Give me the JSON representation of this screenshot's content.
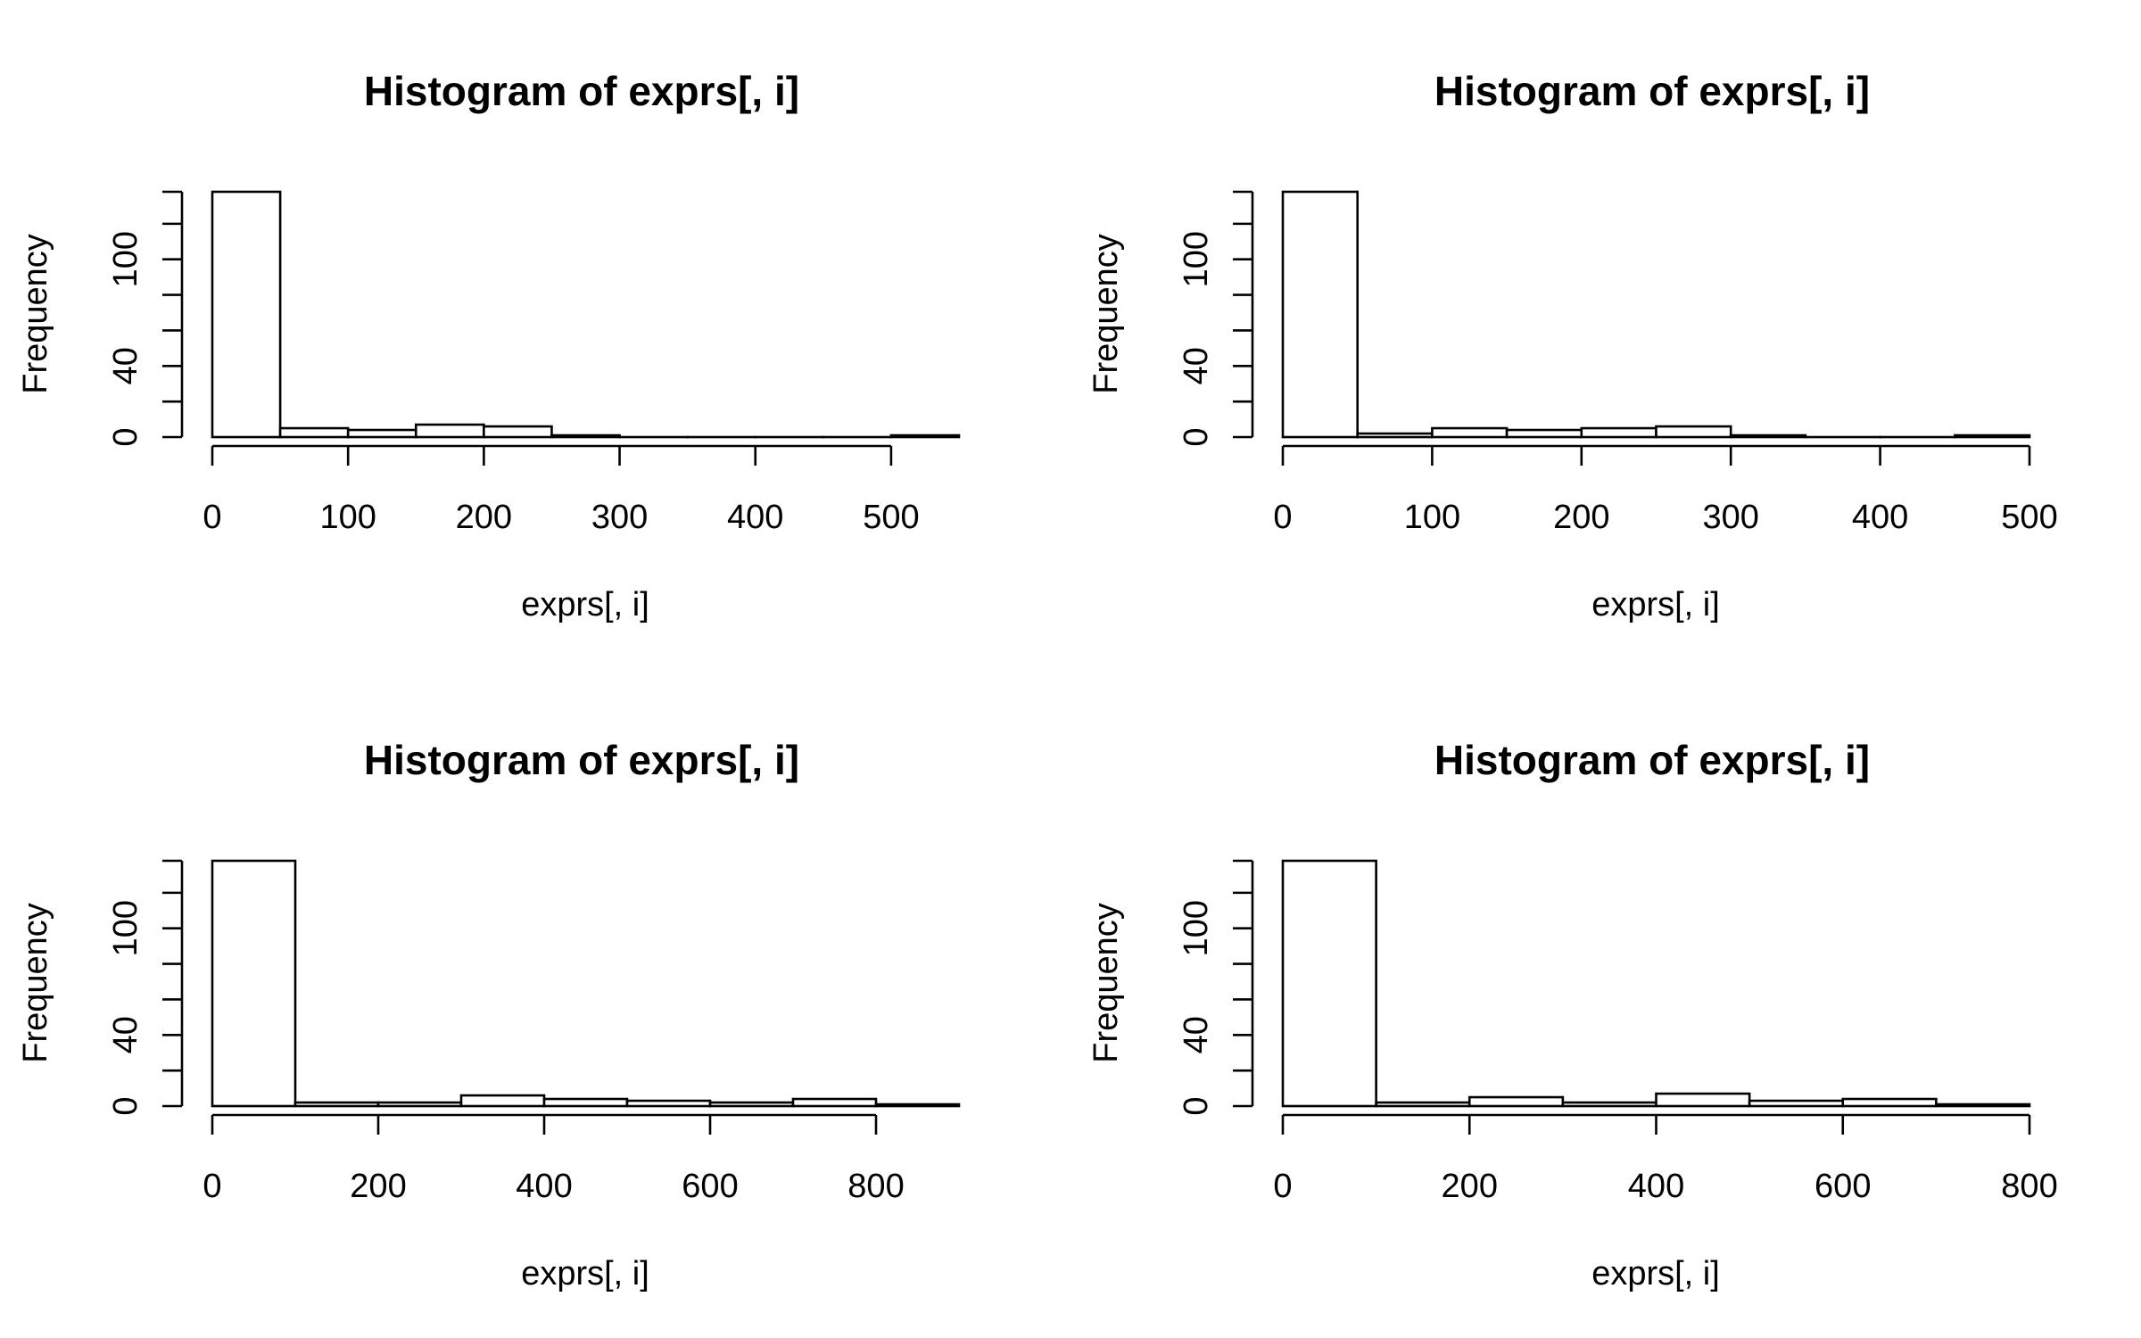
{
  "chart_data": [
    {
      "type": "bar",
      "title": "Histogram of exprs[, i]",
      "xlabel": "exprs[, i]",
      "ylabel": "Frequency",
      "bin_width": 50,
      "bins_start": 0,
      "values": [
        138,
        5,
        4,
        7,
        6,
        1,
        0,
        0,
        0,
        0,
        1
      ],
      "xlim": [
        0,
        550
      ],
      "ylim": [
        0,
        138
      ],
      "x_ticks": [
        0,
        100,
        200,
        300,
        400,
        500
      ],
      "y_ticks": [
        0,
        40,
        100
      ],
      "y_minor_ticks": [
        20,
        60,
        80,
        120,
        138
      ],
      "grid": false
    },
    {
      "type": "bar",
      "title": "Histogram of exprs[, i]",
      "xlabel": "exprs[, i]",
      "ylabel": "Frequency",
      "bin_width": 50,
      "bins_start": 0,
      "values": [
        138,
        2,
        5,
        4,
        5,
        6,
        1,
        0,
        0,
        1
      ],
      "xlim": [
        0,
        500
      ],
      "ylim": [
        0,
        138
      ],
      "x_ticks": [
        0,
        100,
        200,
        300,
        400,
        500
      ],
      "y_ticks": [
        0,
        40,
        100
      ],
      "y_minor_ticks": [
        20,
        60,
        80,
        120,
        138
      ],
      "grid": false
    },
    {
      "type": "bar",
      "title": "Histogram of exprs[, i]",
      "xlabel": "exprs[, i]",
      "ylabel": "Frequency",
      "bin_width": 100,
      "bins_start": 0,
      "values": [
        138,
        2,
        2,
        6,
        4,
        3,
        2,
        4,
        1
      ],
      "xlim": [
        0,
        900
      ],
      "ylim": [
        0,
        138
      ],
      "x_ticks": [
        0,
        200,
        400,
        600,
        800
      ],
      "y_ticks": [
        0,
        40,
        100
      ],
      "y_minor_ticks": [
        20,
        60,
        80,
        120,
        138
      ],
      "grid": false
    },
    {
      "type": "bar",
      "title": "Histogram of exprs[, i]",
      "xlabel": "exprs[, i]",
      "ylabel": "Frequency",
      "bin_width": 100,
      "bins_start": 0,
      "values": [
        138,
        2,
        5,
        2,
        7,
        3,
        4,
        1
      ],
      "xlim": [
        0,
        800
      ],
      "ylim": [
        0,
        138
      ],
      "x_ticks": [
        0,
        200,
        400,
        600,
        800
      ],
      "y_ticks": [
        0,
        40,
        100
      ],
      "y_minor_ticks": [
        20,
        60,
        80,
        120,
        138
      ],
      "grid": false
    }
  ]
}
